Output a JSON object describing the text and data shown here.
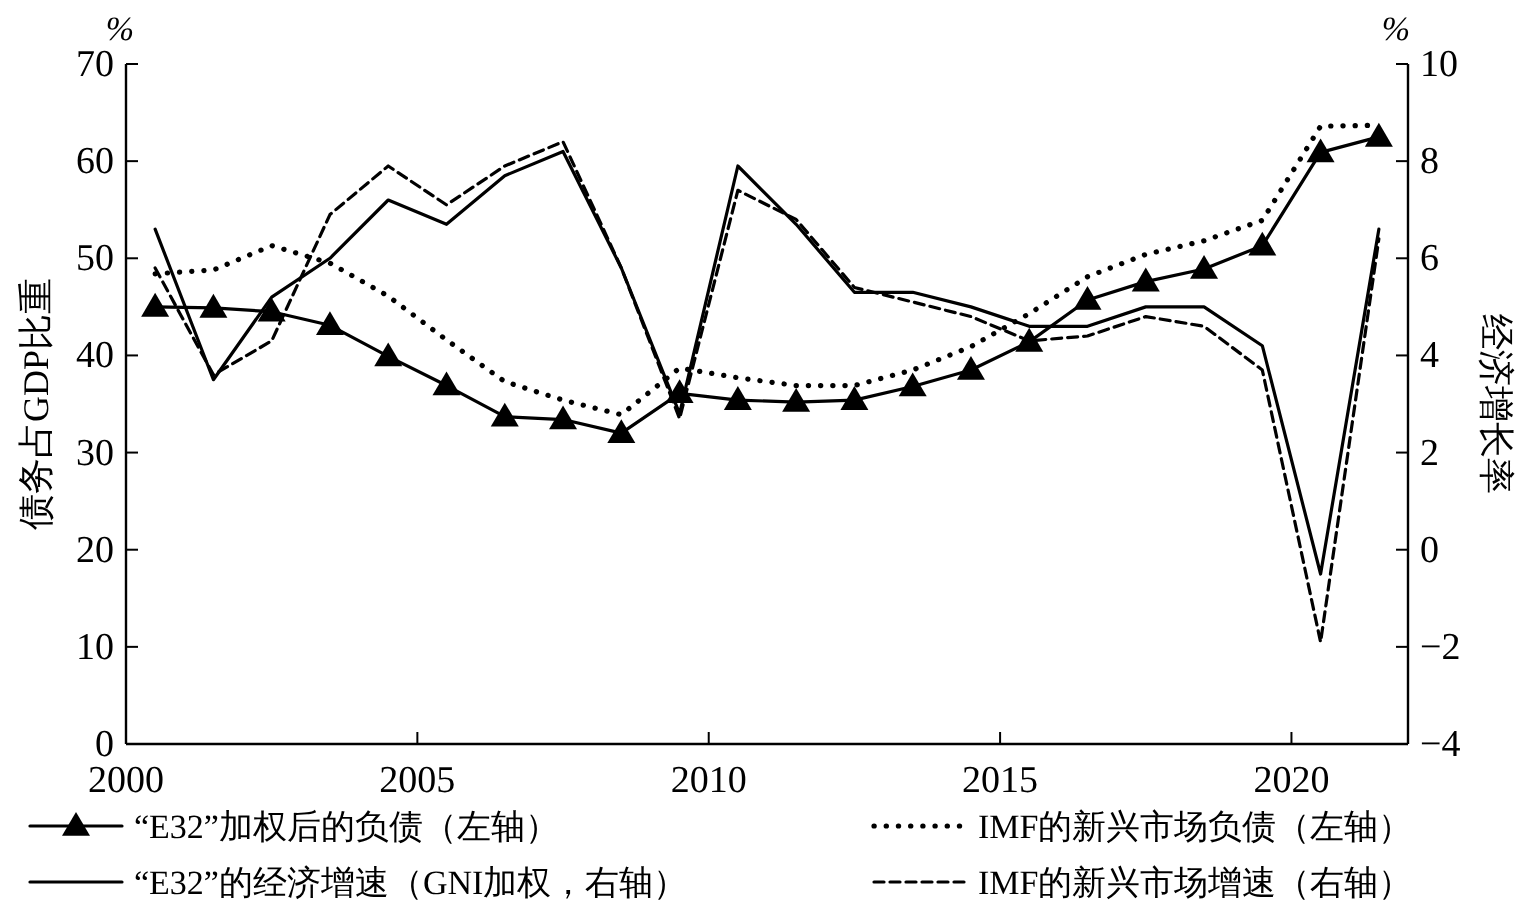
{
  "chart_data": {
    "type": "line",
    "ylabel": "债务占GDP比重",
    "y2label": "经济增长率",
    "annotations": [
      "%",
      "%"
    ],
    "x": [
      2000.5,
      2001.5,
      2002.5,
      2003.5,
      2004.5,
      2005.5,
      2006.5,
      2007.5,
      2008.5,
      2009.5,
      2010.5,
      2011.5,
      2012.5,
      2013.5,
      2014.5,
      2015.5,
      2016.5,
      2017.5,
      2018.5,
      2019.5,
      2020.5,
      2021.5
    ],
    "xlim": [
      2000,
      2022
    ],
    "xticks": [
      2000,
      2005,
      2010,
      2015,
      2020
    ],
    "ylim": [
      0,
      70
    ],
    "yticks": [
      0,
      10,
      20,
      30,
      40,
      50,
      60,
      70
    ],
    "y2lim": [
      -4,
      10
    ],
    "y2ticks": [
      -4,
      -2,
      0,
      2,
      4,
      6,
      8,
      10
    ],
    "legend": "bottom",
    "series": [
      {
        "name": "“E32”加权后的负债（左轴）",
        "color": "#000000",
        "marker": "triangle",
        "line_style": "solid",
        "values": [
          45,
          44.9,
          44.5,
          43.1,
          39.9,
          36.9,
          33.7,
          33.4,
          32,
          36.1,
          35.4,
          35.2,
          35.4,
          36.8,
          38.5,
          41.4,
          45.7,
          47.6,
          48.9,
          51.3,
          60.9,
          62.5
        ]
      },
      {
        "name": "IMF的新兴市场负债（左轴）",
        "color": "#000000",
        "marker": "none",
        "line_style": "dotted",
        "values": [
          48.4,
          48.8,
          51.3,
          49.5,
          46.1,
          41.6,
          37.3,
          35.4,
          33.9,
          38.7,
          37.7,
          36.9,
          36.9,
          38.5,
          40.9,
          44.3,
          48.1,
          50.4,
          51.8,
          53.9,
          63.6,
          63.7
        ]
      },
      {
        "name": "“E32”的经济增速（GNI加权，右轴）",
        "color": "#000000",
        "marker": "none",
        "line_style": "solid",
        "axis": "y2",
        "values": [
          6.6,
          3.5,
          5.2,
          6.0,
          7.2,
          6.7,
          7.7,
          8.2,
          5.8,
          2.8,
          7.9,
          6.7,
          5.3,
          5.3,
          5.0,
          4.6,
          4.6,
          5.0,
          5.0,
          4.2,
          -0.5,
          6.6
        ]
      },
      {
        "name": "IMF的新兴市场增速（右轴）",
        "color": "#000000",
        "marker": "none",
        "line_style": "dashed",
        "axis": "y2",
        "values": [
          5.8,
          3.6,
          4.3,
          6.9,
          7.9,
          7.1,
          7.9,
          8.4,
          5.8,
          2.7,
          7.4,
          6.8,
          5.4,
          5.1,
          4.8,
          4.3,
          4.4,
          4.8,
          4.6,
          3.7,
          -1.9,
          6.4
        ]
      }
    ]
  }
}
